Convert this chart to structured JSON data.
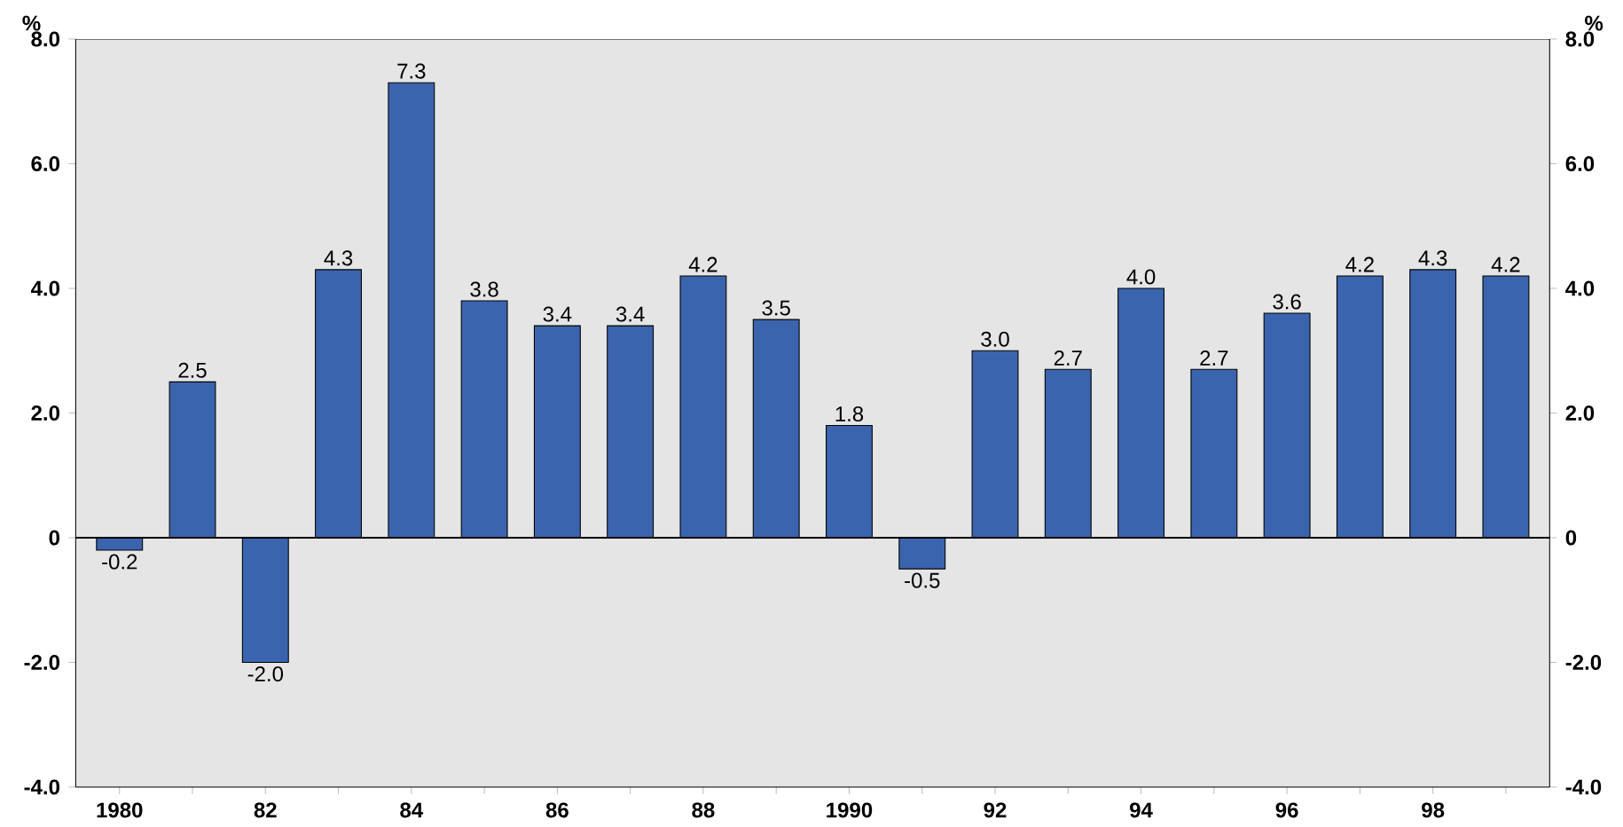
{
  "chart_data": {
    "type": "bar",
    "ylabel": "%",
    "y2label": "%",
    "categories": [
      "1980",
      null,
      "82",
      null,
      "84",
      null,
      "86",
      null,
      "88",
      null,
      "1990",
      null,
      "92",
      null,
      "94",
      null,
      "96",
      null,
      "98",
      null
    ],
    "values": [
      -0.2,
      2.5,
      -2.0,
      4.3,
      7.3,
      3.8,
      3.4,
      3.4,
      4.2,
      3.5,
      1.8,
      -0.5,
      3.0,
      2.7,
      4.0,
      2.7,
      3.6,
      4.2,
      4.3,
      4.2
    ],
    "value_labels": [
      "-0.2",
      "2.5",
      "-2.0",
      "4.3",
      "7.3",
      "3.8",
      "3.4",
      "3.4",
      "4.2",
      "3.5",
      "1.8",
      "-0.5",
      "3.0",
      "2.7",
      "4.0",
      "2.7",
      "3.6",
      "4.2",
      "4.3",
      "4.2"
    ],
    "color": "#3a64ad",
    "ylim": [
      -4,
      8
    ],
    "yticks": [
      {
        "value": -4,
        "label": "-4.0"
      },
      {
        "value": -2,
        "label": "-2.0"
      },
      0,
      {
        "value": 2,
        "label": "2.0"
      },
      {
        "value": 4,
        "label": "4.0"
      },
      {
        "value": 6,
        "label": "6.0"
      },
      {
        "value": 8,
        "label": "8.0"
      }
    ],
    "y2lim": [
      -4,
      8
    ],
    "y2ticks": [
      {
        "value": -4,
        "label": "-4.0"
      },
      {
        "value": -2,
        "label": "-2.0"
      },
      0,
      {
        "value": 2,
        "label": "2.0"
      },
      {
        "value": 4,
        "label": "4.0"
      },
      {
        "value": 6,
        "label": "6.0"
      },
      {
        "value": 8,
        "label": "8.0"
      }
    ],
    "ref_lines": [
      {
        "axis": "y",
        "value": 0,
        "color": "#000000"
      }
    ],
    "grid": false
  }
}
